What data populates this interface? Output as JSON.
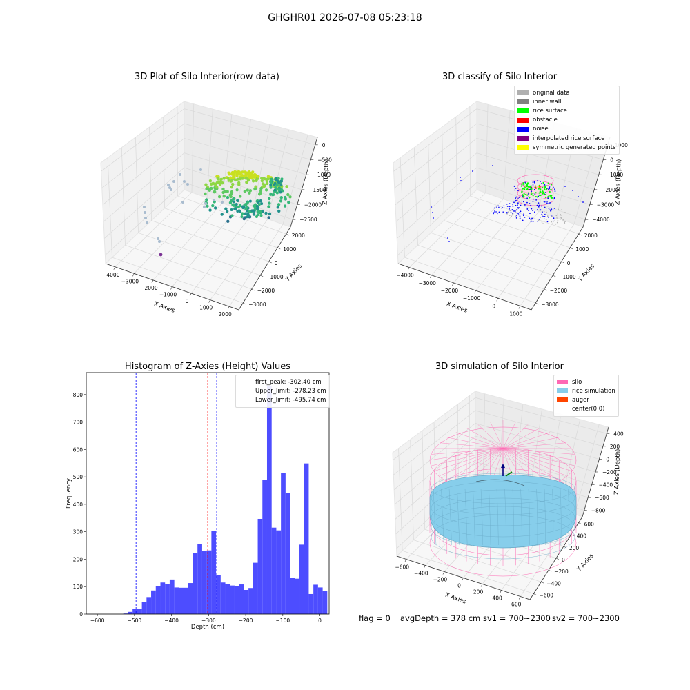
{
  "figure_title": "GHGHR01 2026-07-08 05:23:18",
  "footer": {
    "flag": "flag = 0",
    "avg_depth": "avgDepth = 378 cm",
    "sv1": "sv1 = 700~2300",
    "sv2": "sv2 = 700~2300"
  },
  "panels": {
    "raw": {
      "title": "3D Plot of Silo Interior(row data)",
      "xlabel": "X Axies",
      "ylabel": "Y Axies",
      "zlabel": "Z Axies (Depth)",
      "xticks": [
        "−4000",
        "−3000",
        "−2000",
        "−1000",
        "0",
        "1000",
        "2000"
      ],
      "yticks": [
        "−3000",
        "−2000",
        "−1000",
        "0",
        "1000",
        "2000"
      ],
      "zticks": [
        "0",
        "−500",
        "−1000",
        "−1500",
        "−2000",
        "−2500"
      ]
    },
    "classify": {
      "title": "3D classify of Silo Interior",
      "xlabel": "X Axies",
      "ylabel": "Y Axies",
      "zlabel": "Z Axies (Depth)",
      "xticks": [
        "−4000",
        "−3000",
        "−2000",
        "−1000",
        "0",
        "1000"
      ],
      "yticks": [
        "−3000",
        "−2000",
        "−1000",
        "0",
        "1000",
        "2000"
      ],
      "zticks": [
        "1000",
        "0",
        "−1000",
        "−2000",
        "−3000",
        "−4000"
      ],
      "legend": [
        {
          "label": "original data",
          "color": "#b0b0b0"
        },
        {
          "label": "inner wall",
          "color": "#808080"
        },
        {
          "label": "rice surface",
          "color": "#00ff00"
        },
        {
          "label": "obstacle",
          "color": "#ff0000"
        },
        {
          "label": "noise",
          "color": "#0000ff"
        },
        {
          "label": "interpolated rice surface",
          "color": "#800080"
        },
        {
          "label": "symmetric generated points",
          "color": "#ffff00"
        }
      ]
    },
    "simulation": {
      "title": "3D simulation of Silo Interior",
      "xlabel": "X Axies",
      "ylabel": "Y Axies",
      "zlabel": "Z Axies (Depth)",
      "xticks": [
        "−600",
        "−400",
        "−200",
        "0",
        "200",
        "400",
        "600"
      ],
      "yticks": [
        "−600",
        "−400",
        "−200",
        "0",
        "200",
        "400",
        "600"
      ],
      "zticks": [
        "400",
        "200",
        "0",
        "−200",
        "−400",
        "−600",
        "−800"
      ],
      "legend": [
        {
          "label": "silo",
          "color": "#ff69b4"
        },
        {
          "label": "rice simulation",
          "color": "#87ceeb"
        },
        {
          "label": "auger",
          "color": "#ff4500"
        },
        {
          "label": "center(0,0)",
          "color": "#ffffff"
        }
      ]
    }
  },
  "chart_data": [
    {
      "type": "bar",
      "title": "Histogram of Z-Axies (Height) Values",
      "xlabel": "Depth (cm)",
      "ylabel": "Frequency",
      "xlim": [
        -630,
        25
      ],
      "ylim": [
        0,
        880
      ],
      "xticks": [
        -600,
        -500,
        -400,
        -300,
        -200,
        -100,
        0
      ],
      "yticks": [
        0,
        100,
        200,
        300,
        400,
        500,
        600,
        700,
        800
      ],
      "bar_color": "#4d4dff",
      "bins_start": -530,
      "bin_width": 12.5,
      "values": [
        2,
        8,
        20,
        20,
        45,
        62,
        86,
        103,
        115,
        110,
        126,
        97,
        96,
        96,
        113,
        222,
        255,
        230,
        232,
        302,
        143,
        115,
        109,
        104,
        103,
        108,
        88,
        95,
        187,
        347,
        490,
        830,
        315,
        305,
        513,
        441,
        132,
        129,
        253,
        549,
        73,
        107,
        97,
        85
      ],
      "reference_lines": [
        {
          "label": "first_peak: -302.40 cm",
          "value": -302.4,
          "color": "#ff0000"
        },
        {
          "label": "Upper_limit: -278.23 cm",
          "value": -278.23,
          "color": "#0000ff"
        },
        {
          "label": "Lower_limit: -495.74 cm",
          "value": -495.74,
          "color": "#0000ff"
        }
      ]
    }
  ]
}
